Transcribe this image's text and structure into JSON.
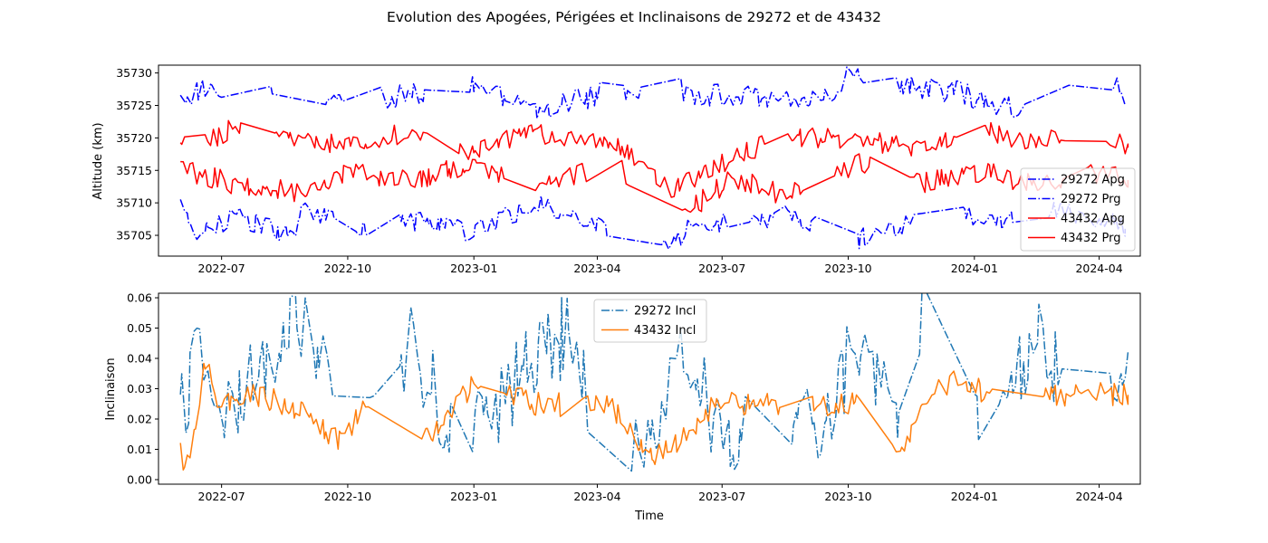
{
  "figure": {
    "title": "Evolution des Apogées, Périgées et Inclinaisons de 29272 et de 43432"
  },
  "chart_data": [
    {
      "type": "line",
      "panel": "top",
      "ylabel": "Altitude (km)",
      "xlabel": "",
      "x_range": [
        "2022-05-16",
        "2024-05-01"
      ],
      "ylim": [
        35701.8,
        35731.2
      ],
      "y_ticks": [
        35705,
        35710,
        35715,
        35720,
        35725,
        35730
      ],
      "x_ticks": [
        "2022-07",
        "2022-10",
        "2023-01",
        "2023-04",
        "2023-07",
        "2023-10",
        "2024-01",
        "2024-04"
      ],
      "grid": false,
      "legend_position": "lower right",
      "series": [
        {
          "name": "29272 Apg",
          "color": "#0000ff",
          "style": "dashdot",
          "base": 35726.5,
          "amplitude": 1.8,
          "anchors": [
            [
              "2022-06-01",
              35725.8
            ],
            [
              "2022-06-15",
              35727.5
            ],
            [
              "2022-07-10",
              35728.0
            ],
            [
              "2022-08-25",
              35728.1
            ],
            [
              "2022-08-28",
              35723.8
            ],
            [
              "2022-10-10",
              35727.5
            ],
            [
              "2022-10-25",
              35726.0
            ],
            [
              "2022-12-10",
              35727.3
            ],
            [
              "2023-01-01",
              35728.0
            ],
            [
              "2023-02-15",
              35724.2
            ],
            [
              "2023-04-10",
              35727.2
            ],
            [
              "2023-05-25",
              35728.0
            ],
            [
              "2023-06-10",
              35726.8
            ],
            [
              "2023-07-15",
              35726.5
            ],
            [
              "2023-08-15",
              35725.2
            ],
            [
              "2023-09-20",
              35727.0
            ],
            [
              "2023-10-01",
              35730.0
            ],
            [
              "2023-11-10",
              35728.0
            ],
            [
              "2023-12-20",
              35727.2
            ],
            [
              "2024-01-20",
              35724.5
            ],
            [
              "2024-02-20",
              35726.0
            ],
            [
              "2024-04-15",
              35727.5
            ],
            [
              "2024-04-20",
              35725.0
            ]
          ]
        },
        {
          "name": "29272 Prg",
          "color": "#0000ff",
          "style": "dashdot",
          "base": 35707.0,
          "amplitude": 1.6,
          "anchors": [
            [
              "2022-06-01",
              35709.8
            ],
            [
              "2022-06-15",
              35705.0
            ],
            [
              "2022-07-10",
              35708.0
            ],
            [
              "2022-08-25",
              35705.0
            ],
            [
              "2022-08-28",
              35709.5
            ],
            [
              "2022-10-10",
              35705.0
            ],
            [
              "2022-10-25",
              35708.0
            ],
            [
              "2022-12-10",
              35706.5
            ],
            [
              "2023-01-01",
              35705.5
            ],
            [
              "2023-02-15",
              35710.0
            ],
            [
              "2023-04-10",
              35705.5
            ],
            [
              "2023-05-25",
              35704.0
            ],
            [
              "2023-06-10",
              35706.5
            ],
            [
              "2023-07-15",
              35707.0
            ],
            [
              "2023-08-15",
              35708.0
            ],
            [
              "2023-09-20",
              35706.0
            ],
            [
              "2023-10-01",
              35704.0
            ],
            [
              "2023-11-10",
              35706.5
            ],
            [
              "2023-12-20",
              35708.0
            ],
            [
              "2024-01-20",
              35707.0
            ],
            [
              "2024-02-20",
              35709.0
            ],
            [
              "2024-04-15",
              35707.0
            ],
            [
              "2024-04-20",
              35706.0
            ]
          ]
        },
        {
          "name": "43432 Apg",
          "color": "#ff0000",
          "style": "solid",
          "base": 35719.0,
          "amplitude": 1.6,
          "anchors": [
            [
              "2022-06-01",
              35718.5
            ],
            [
              "2022-06-20",
              35719.5
            ],
            [
              "2022-07-20",
              35722.5
            ],
            [
              "2022-08-25",
              35720.0
            ],
            [
              "2022-10-01",
              35719.0
            ],
            [
              "2022-11-20",
              35721.0
            ],
            [
              "2023-01-01",
              35718.0
            ],
            [
              "2023-02-15",
              35721.0
            ],
            [
              "2023-03-15",
              35719.5
            ],
            [
              "2023-04-15",
              35719.0
            ],
            [
              "2023-05-25",
              35712.0
            ],
            [
              "2023-07-10",
              35717.0
            ],
            [
              "2023-08-15",
              35720.5
            ],
            [
              "2023-10-10",
              35719.5
            ],
            [
              "2023-11-25",
              35718.5
            ],
            [
              "2024-01-10",
              35721.0
            ],
            [
              "2024-02-15",
              35719.0
            ],
            [
              "2024-03-20",
              35721.5
            ],
            [
              "2024-04-22",
              35718.5
            ]
          ]
        },
        {
          "name": "43432 Prg",
          "color": "#ff0000",
          "style": "solid",
          "base": 35714.5,
          "amplitude": 1.7,
          "anchors": [
            [
              "2022-06-01",
              35715.5
            ],
            [
              "2022-06-20",
              35714.0
            ],
            [
              "2022-07-20",
              35712.5
            ],
            [
              "2022-08-25",
              35711.5
            ],
            [
              "2022-10-01",
              35714.5
            ],
            [
              "2022-11-20",
              35713.5
            ],
            [
              "2023-01-01",
              35716.0
            ],
            [
              "2023-02-15",
              35712.0
            ],
            [
              "2023-03-15",
              35714.0
            ],
            [
              "2023-04-15",
              35716.0
            ],
            [
              "2023-05-25",
              35707.0
            ],
            [
              "2023-07-10",
              35714.0
            ],
            [
              "2023-08-15",
              35711.0
            ],
            [
              "2023-10-10",
              35716.0
            ],
            [
              "2023-11-25",
              35713.0
            ],
            [
              "2024-01-10",
              35715.0
            ],
            [
              "2024-02-15",
              35712.5
            ],
            [
              "2024-03-20",
              35715.0
            ],
            [
              "2024-04-22",
              35713.5
            ]
          ]
        }
      ]
    },
    {
      "type": "line",
      "panel": "bottom",
      "ylabel": "Inclinaison",
      "xlabel": "Time",
      "x_range": [
        "2022-05-16",
        "2024-05-01"
      ],
      "ylim": [
        -0.0015,
        0.0615
      ],
      "y_ticks": [
        0.0,
        0.01,
        0.02,
        0.03,
        0.04,
        0.05,
        0.06
      ],
      "x_ticks": [
        "2022-07",
        "2022-10",
        "2023-01",
        "2023-04",
        "2023-07",
        "2023-10",
        "2024-01",
        "2024-04"
      ],
      "grid": false,
      "legend_position": "upper center",
      "series": [
        {
          "name": "29272 Incl",
          "color": "#1f77b4",
          "style": "dashdot",
          "base": 0.024,
          "amplitude": 0.014,
          "anchors": [
            [
              "2022-06-01",
              0.021
            ],
            [
              "2022-06-15",
              0.045
            ],
            [
              "2022-07-01",
              0.015
            ],
            [
              "2022-07-20",
              0.03
            ],
            [
              "2022-08-25",
              0.053
            ],
            [
              "2022-09-15",
              0.04
            ],
            [
              "2022-10-15",
              0.012
            ],
            [
              "2022-11-15",
              0.045
            ],
            [
              "2022-12-15",
              0.018
            ],
            [
              "2023-01-10",
              0.015
            ],
            [
              "2023-02-10",
              0.04
            ],
            [
              "2023-03-10",
              0.048
            ],
            [
              "2023-04-10",
              0.01
            ],
            [
              "2023-05-10",
              0.006
            ],
            [
              "2023-06-01",
              0.04
            ],
            [
              "2023-07-10",
              0.01
            ],
            [
              "2023-08-10",
              0.025
            ],
            [
              "2023-09-10",
              0.014
            ],
            [
              "2023-10-10",
              0.048
            ],
            [
              "2023-11-10",
              0.015
            ],
            [
              "2023-11-25",
              0.057
            ],
            [
              "2023-12-10",
              0.04
            ],
            [
              "2024-01-10",
              0.012
            ],
            [
              "2024-02-20",
              0.05
            ],
            [
              "2024-03-20",
              0.012
            ],
            [
              "2024-04-22",
              0.042
            ]
          ]
        },
        {
          "name": "43432 Incl",
          "color": "#ff7f0e",
          "style": "solid",
          "base": 0.024,
          "amplitude": 0.004,
          "anchors": [
            [
              "2022-06-01",
              0.01
            ],
            [
              "2022-06-05",
              0.003
            ],
            [
              "2022-06-20",
              0.04
            ],
            [
              "2022-07-01",
              0.022
            ],
            [
              "2022-07-15",
              0.029
            ],
            [
              "2022-08-25",
              0.024
            ],
            [
              "2022-09-25",
              0.013
            ],
            [
              "2022-10-20",
              0.028
            ],
            [
              "2022-11-10",
              0.039
            ],
            [
              "2022-11-20",
              0.009
            ],
            [
              "2022-12-10",
              0.021
            ],
            [
              "2023-01-01",
              0.031
            ],
            [
              "2023-02-15",
              0.025
            ],
            [
              "2023-04-10",
              0.024
            ],
            [
              "2023-05-10",
              0.008
            ],
            [
              "2023-06-01",
              0.012
            ],
            [
              "2023-06-25",
              0.025
            ],
            [
              "2023-08-15",
              0.025
            ],
            [
              "2023-10-15",
              0.025
            ],
            [
              "2023-11-10",
              0.01
            ],
            [
              "2023-11-25",
              0.025
            ],
            [
              "2023-12-20",
              0.035
            ],
            [
              "2024-01-20",
              0.025
            ],
            [
              "2024-03-20",
              0.029
            ],
            [
              "2024-04-22",
              0.028
            ]
          ]
        }
      ]
    }
  ]
}
